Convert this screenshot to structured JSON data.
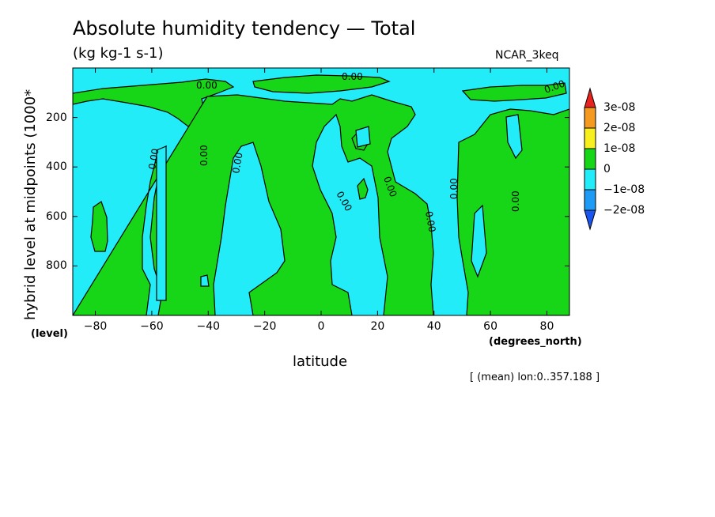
{
  "chart_data": {
    "type": "contour",
    "title": "Absolute humidity tendency — Total",
    "units": "(kg kg-1 s-1)",
    "source": "NCAR_3keq",
    "xlabel": "latitude",
    "xunit": "(degrees_north)",
    "ylabel": "hybrid level at midpoints (1000*",
    "yunit": "(level)",
    "footnote": "[ (mean) lon:0..357.188 ]",
    "xlim": [
      -88,
      88
    ],
    "ylim": [
      0,
      1000
    ],
    "y_inverted": true,
    "x_ticks": [
      -80,
      -60,
      -40,
      -20,
      0,
      20,
      40,
      60,
      80
    ],
    "x_tick_labels": [
      "−80",
      "−60",
      "−40",
      "−20",
      "0",
      "20",
      "40",
      "60",
      "80"
    ],
    "y_ticks": [
      200,
      400,
      600,
      800
    ],
    "y_tick_labels": [
      "200",
      "400",
      "600",
      "800"
    ],
    "contour_label": "0.00",
    "colorbar": {
      "levels": [
        "3e-08",
        "2e-08",
        "1e-08",
        "0",
        "−1e-08",
        "−2e-08"
      ],
      "colors": {
        "above_3e-08": "#e8221e",
        "2e-08_3e-08": "#f59a20",
        "1e-08_2e-08": "#f7ef1e",
        "0_1e-08": "#17d617",
        "-1e-08_0": "#22ecf7",
        "-2e-08_-1e-08": "#1e9cf5",
        "below_-2e-08": "#1a55f0"
      }
    },
    "regions": [
      {
        "name": "positive",
        "color": "#17d617"
      },
      {
        "name": "negative",
        "color": "#22ecf7"
      }
    ]
  }
}
